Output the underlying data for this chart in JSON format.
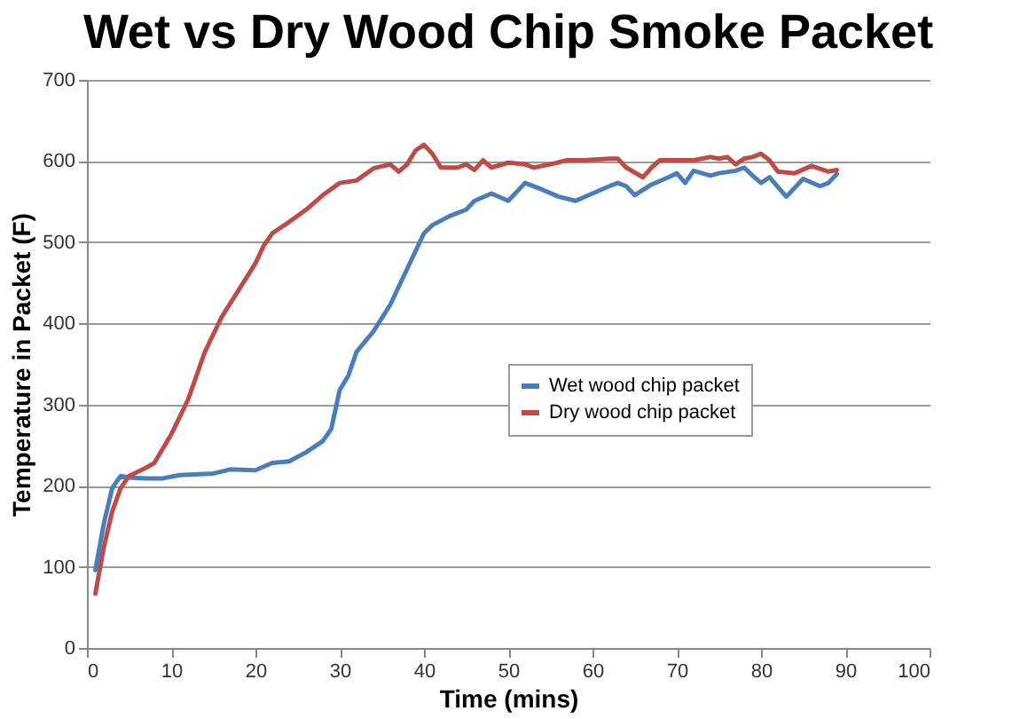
{
  "chart_data": {
    "type": "line",
    "title": "Wet vs Dry Wood Chip Smoke Packet",
    "xlabel": "Time (mins)",
    "ylabel": "Temperature in Packet (F)",
    "xlim": [
      0,
      100
    ],
    "xticks": [
      0,
      10,
      20,
      30,
      40,
      50,
      60,
      70,
      80,
      90,
      100
    ],
    "ylim": [
      0,
      700
    ],
    "yticks": [
      0,
      100,
      200,
      300,
      400,
      500,
      600,
      700
    ],
    "grid": "y",
    "legend": "right",
    "marker": "none",
    "line_style": "solid",
    "series": [
      {
        "name": "Wet wood chip packet",
        "color": "#4a7ebb",
        "x": [
          1,
          2,
          3,
          4,
          5,
          7,
          9,
          11,
          15,
          17,
          20,
          22,
          24,
          26,
          28,
          29,
          30,
          31,
          32,
          34,
          36,
          38,
          40,
          41,
          43,
          45,
          46,
          48,
          50,
          52,
          54,
          56,
          58,
          60,
          62,
          63,
          64,
          65,
          67,
          69,
          70,
          71,
          72,
          74,
          75,
          77,
          78,
          79,
          80,
          81,
          83,
          85,
          87,
          88,
          89
        ],
        "values": [
          96,
          153,
          197,
          212,
          210,
          209,
          209,
          213,
          215,
          220,
          219,
          228,
          230,
          241,
          255,
          270,
          318,
          335,
          365,
          390,
          423,
          467,
          511,
          521,
          532,
          540,
          551,
          560,
          551,
          573,
          565,
          556,
          551,
          560,
          569,
          573,
          569,
          558,
          571,
          580,
          585,
          573,
          588,
          582,
          585,
          588,
          592,
          582,
          573,
          580,
          556,
          578,
          569,
          573,
          584
        ]
      },
      {
        "name": "Dry wood chip packet",
        "color": "#be4b48",
        "x": [
          1,
          2,
          3,
          4,
          5,
          7,
          8,
          10,
          12,
          14,
          16,
          18,
          20,
          21,
          22,
          24,
          26,
          28,
          30,
          32,
          34,
          36,
          37,
          38,
          39,
          40,
          41,
          42,
          44,
          45,
          46,
          47,
          48,
          50,
          52,
          53,
          55,
          57,
          59,
          62,
          63,
          64,
          66,
          67,
          68,
          70,
          72,
          74,
          75,
          76,
          77,
          78,
          79,
          80,
          81,
          82,
          84,
          86,
          88,
          89
        ],
        "values": [
          67,
          124,
          168,
          197,
          212,
          222,
          228,
          263,
          306,
          365,
          408,
          441,
          474,
          496,
          511,
          525,
          540,
          558,
          573,
          576,
          591,
          596,
          587,
          596,
          613,
          620,
          609,
          592,
          592,
          596,
          589,
          601,
          592,
          598,
          596,
          592,
          596,
          601,
          601,
          603,
          603,
          592,
          580,
          592,
          601,
          601,
          601,
          605,
          603,
          605,
          596,
          603,
          605,
          609,
          601,
          587,
          585,
          594,
          587,
          589
        ]
      }
    ]
  }
}
